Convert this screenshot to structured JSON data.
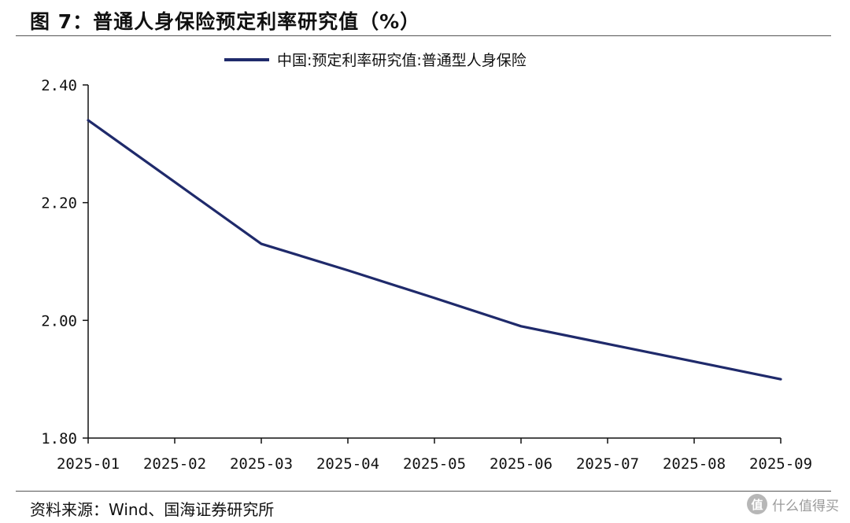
{
  "header": {
    "title": "图 7：普通人身保险预定利率研究值（%）"
  },
  "footer": {
    "source": "资料来源：Wind、国海证券研究所",
    "watermark_text": "什么值得买",
    "watermark_icon": "值"
  },
  "chart_data": {
    "type": "line",
    "title": "",
    "xlabel": "",
    "ylabel": "",
    "categories": [
      "2025-01",
      "2025-02",
      "2025-03",
      "2025-04",
      "2025-05",
      "2025-06",
      "2025-07",
      "2025-08",
      "2025-09"
    ],
    "series": [
      {
        "name": "中国:预定利率研究值:普通型人身保险",
        "values": [
          2.34,
          2.235,
          2.13,
          2.085,
          2.038,
          1.99,
          1.96,
          1.93,
          1.9
        ],
        "color": "#1f2a6b"
      }
    ],
    "ylim": [
      1.8,
      2.4
    ],
    "yticks": [
      1.8,
      2.0,
      2.2,
      2.4
    ],
    "ytick_labels": [
      "1.80",
      "2.00",
      "2.20",
      "2.40"
    ],
    "grid": false,
    "legend_position": "top-center"
  }
}
